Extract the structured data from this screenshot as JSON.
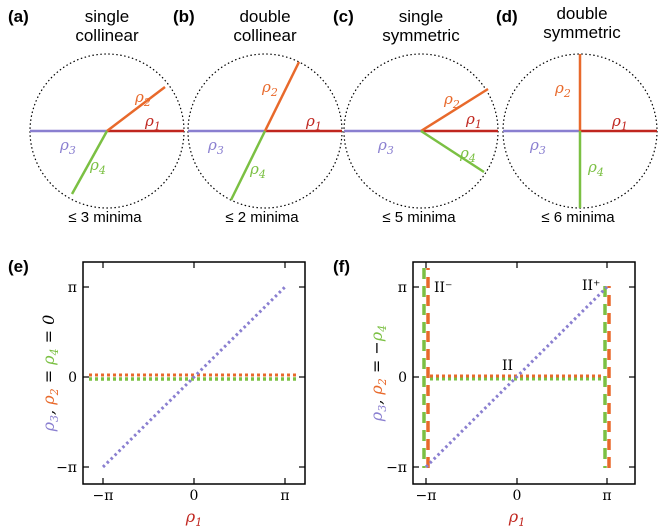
{
  "colors": {
    "rho1": "#c0261f",
    "rho2": "#e8692b",
    "rho3": "#8a7fd0",
    "rho4": "#7bc043",
    "outline": "#000000"
  },
  "panels": [
    {
      "id": "a",
      "label": "(a)",
      "title": [
        "single",
        "collinear"
      ],
      "minima": "≤ 3 minima"
    },
    {
      "id": "b",
      "label": "(b)",
      "title": [
        "double",
        "collinear"
      ],
      "minima": "≤ 2 minima"
    },
    {
      "id": "c",
      "label": "(c)",
      "title": [
        "single",
        "symmetric"
      ],
      "minima": "≤ 5 minima"
    },
    {
      "id": "d",
      "label": "(d)",
      "title": [
        "double",
        "symmetric"
      ],
      "minima": "≤ 6 minima"
    }
  ],
  "rho": {
    "symbol": "ρ",
    "s1": "1",
    "s2": "2",
    "s3": "3",
    "s4": "4"
  },
  "plot_e": {
    "label": "(e)",
    "ylabel_parts": [
      "ρ",
      "3",
      ", ",
      "ρ",
      "2",
      " = ",
      "ρ",
      "4",
      " = 0"
    ],
    "xlabel_parts": [
      "ρ",
      "1"
    ],
    "ticks": [
      "−π",
      "0",
      "π"
    ]
  },
  "plot_f": {
    "label": "(f)",
    "ylabel_parts": [
      "ρ",
      "3",
      ", ",
      "ρ",
      "2",
      " = −",
      "ρ",
      "4"
    ],
    "xlabel_parts": [
      "ρ",
      "1"
    ],
    "ticks": [
      "−π",
      "0",
      "π"
    ],
    "annotations": {
      "IIminus": "II⁻",
      "IIplus": "II⁺",
      "II": "II"
    }
  }
}
